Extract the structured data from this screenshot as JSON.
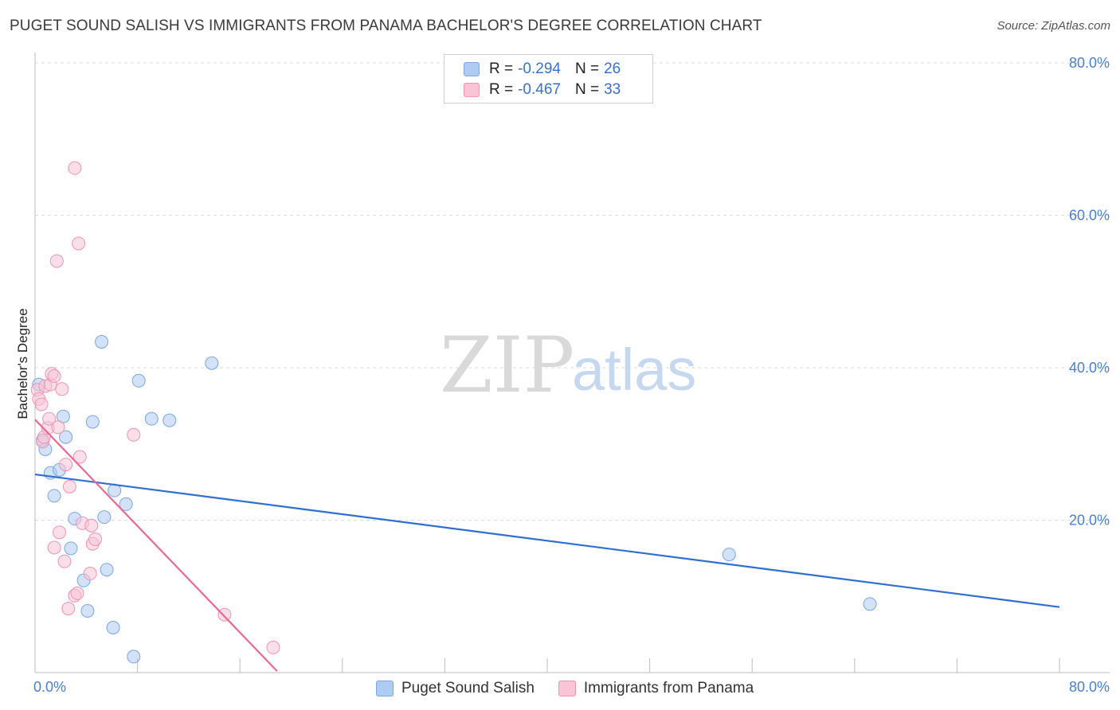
{
  "title": "PUGET SOUND SALISH VS IMMIGRANTS FROM PANAMA BACHELOR'S DEGREE CORRELATION CHART",
  "source": "Source: ZipAtlas.com",
  "watermark": {
    "zip": "ZIP",
    "atlas": "atlas"
  },
  "legend": {
    "items": [
      {
        "r_label": "R =",
        "r_value": "-0.294",
        "n_label": "N =",
        "n_value": "26",
        "color": "#aecbf2",
        "border": "#7aa6e3"
      },
      {
        "r_label": "R =",
        "r_value": "-0.467",
        "n_label": "N =",
        "n_value": "33",
        "color": "#f8c4d6",
        "border": "#ef93b2"
      }
    ]
  },
  "bottom_legend": [
    "Puget Sound Salish",
    "Immigrants from Panama"
  ],
  "chart_data": {
    "type": "scatter",
    "title": "PUGET SOUND SALISH VS IMMIGRANTS FROM PANAMA BACHELOR'S DEGREE CORRELATION CHART",
    "xlabel": "",
    "ylabel": "Bachelor's Degree",
    "xlim": [
      0,
      80
    ],
    "ylim": [
      0,
      80
    ],
    "x_tick_labels": [
      "0.0%",
      "80.0%"
    ],
    "y_ticks": [
      20,
      40,
      60,
      80
    ],
    "y_tick_labels": [
      "20.0%",
      "40.0%",
      "60.0%",
      "80.0%"
    ],
    "grid": true,
    "series": [
      {
        "name": "Puget Sound Salish",
        "color": "#aecbf2",
        "stroke": "#7aa6e3",
        "line_color": "#2f6fd1",
        "trendline": {
          "x": [
            0,
            80
          ],
          "y": [
            26.0,
            8.6
          ]
        },
        "points": [
          [
            0.3,
            37.8
          ],
          [
            0.6,
            30.5
          ],
          [
            0.8,
            29.3
          ],
          [
            1.2,
            26.2
          ],
          [
            1.5,
            23.2
          ],
          [
            1.9,
            26.6
          ],
          [
            2.2,
            33.6
          ],
          [
            2.4,
            30.9
          ],
          [
            2.8,
            16.3
          ],
          [
            3.1,
            20.2
          ],
          [
            3.8,
            12.1
          ],
          [
            4.1,
            8.1
          ],
          [
            4.5,
            32.9
          ],
          [
            5.2,
            43.4
          ],
          [
            5.4,
            20.4
          ],
          [
            5.6,
            13.5
          ],
          [
            6.1,
            5.9
          ],
          [
            6.2,
            23.9
          ],
          [
            7.1,
            22.1
          ],
          [
            7.7,
            2.1
          ],
          [
            8.1,
            38.3
          ],
          [
            9.1,
            33.3
          ],
          [
            10.5,
            33.1
          ],
          [
            13.8,
            40.6
          ],
          [
            54.2,
            15.5
          ],
          [
            65.2,
            9.0
          ]
        ]
      },
      {
        "name": "Immigrants from Panama",
        "color": "#f8c4d6",
        "stroke": "#ef93b2",
        "line_color": "#e8688f",
        "trendline": {
          "x": [
            0,
            18.9
          ],
          "y": [
            33.2,
            0.2
          ]
        },
        "points": [
          [
            0.2,
            37.1
          ],
          [
            0.3,
            35.9
          ],
          [
            0.5,
            35.2
          ],
          [
            0.6,
            30.3
          ],
          [
            0.7,
            30.9
          ],
          [
            0.8,
            37.6
          ],
          [
            1.0,
            32.1
          ],
          [
            1.1,
            33.3
          ],
          [
            1.2,
            37.8
          ],
          [
            1.3,
            39.2
          ],
          [
            1.5,
            38.9
          ],
          [
            1.5,
            16.4
          ],
          [
            1.7,
            54.0
          ],
          [
            1.8,
            32.2
          ],
          [
            1.9,
            18.4
          ],
          [
            2.1,
            37.2
          ],
          [
            2.3,
            14.6
          ],
          [
            2.4,
            27.3
          ],
          [
            2.6,
            8.4
          ],
          [
            2.7,
            24.4
          ],
          [
            3.1,
            66.2
          ],
          [
            3.1,
            10.1
          ],
          [
            3.3,
            10.4
          ],
          [
            3.4,
            56.3
          ],
          [
            3.5,
            28.3
          ],
          [
            3.7,
            19.6
          ],
          [
            4.3,
            13.0
          ],
          [
            4.4,
            19.3
          ],
          [
            4.5,
            16.9
          ],
          [
            4.7,
            17.5
          ],
          [
            7.7,
            31.2
          ],
          [
            14.8,
            7.6
          ],
          [
            18.6,
            3.3
          ]
        ]
      }
    ]
  }
}
